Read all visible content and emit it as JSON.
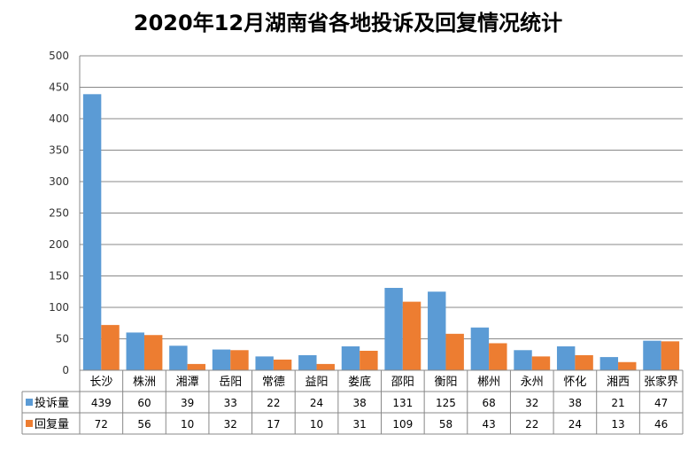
{
  "chart_data": {
    "type": "bar",
    "title": "2020年12月湖南省各地投诉及回复情况统计",
    "categories": [
      "长沙",
      "株洲",
      "湘潭",
      "岳阳",
      "常德",
      "益阳",
      "娄底",
      "邵阳",
      "衡阳",
      "郴州",
      "永州",
      "怀化",
      "湘西",
      "张家界"
    ],
    "series": [
      {
        "name": "投诉量",
        "color": "#5B9BD5",
        "values": [
          439,
          60,
          39,
          33,
          22,
          24,
          38,
          131,
          125,
          68,
          32,
          38,
          21,
          47
        ]
      },
      {
        "name": "回复量",
        "color": "#ED7D31",
        "values": [
          72,
          56,
          10,
          32,
          17,
          10,
          31,
          109,
          58,
          43,
          22,
          24,
          13,
          46
        ]
      }
    ],
    "ylim": [
      0,
      500
    ],
    "yticks": [
      0,
      50,
      100,
      150,
      200,
      250,
      300,
      350,
      400,
      450,
      500
    ],
    "grid": true,
    "legend": "data-table"
  }
}
